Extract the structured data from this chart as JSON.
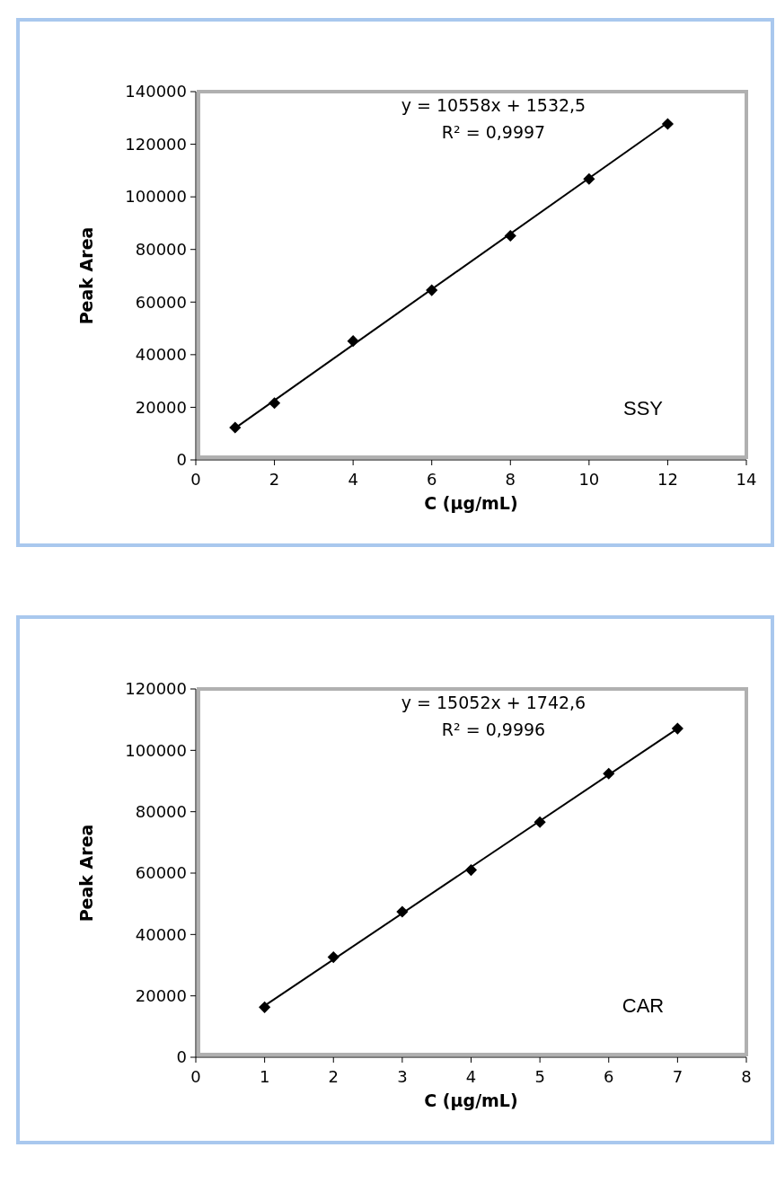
{
  "chart_data": [
    {
      "type": "scatter",
      "xlabel": "C (µg/mL)",
      "ylabel": "Peak Area",
      "xlim": [
        0,
        14
      ],
      "xticks": [
        0,
        2,
        4,
        6,
        8,
        10,
        12,
        14
      ],
      "ylim": [
        0,
        140000
      ],
      "yticks": [
        0,
        20000,
        40000,
        60000,
        80000,
        100000,
        120000,
        140000
      ],
      "grid": false,
      "series": [
        {
          "color": "#000000",
          "marker": "diamond",
          "x": [
            1,
            2,
            4,
            6,
            8,
            10,
            12
          ],
          "values": [
            12300,
            21600,
            45200,
            64500,
            85200,
            106800,
            127700
          ]
        },
        {
          "type": "line",
          "color": "#000000",
          "x": [
            1,
            12
          ],
          "values": [
            12100,
            128200
          ]
        }
      ],
      "annotations": [
        "y = 10558x + 1532,5",
        "R² = 0,9997",
        "SSY"
      ]
    },
    {
      "type": "scatter",
      "xlabel": "C (µg/mL)",
      "ylabel": "Peak Area",
      "xlim": [
        0,
        8
      ],
      "xticks": [
        0,
        1,
        2,
        3,
        4,
        5,
        6,
        7,
        8
      ],
      "ylim": [
        0,
        120000
      ],
      "yticks": [
        0,
        20000,
        40000,
        60000,
        80000,
        100000,
        120000
      ],
      "grid": false,
      "series": [
        {
          "color": "#000000",
          "marker": "diamond",
          "x": [
            1,
            2,
            3,
            4,
            5,
            6,
            7
          ],
          "values": [
            16300,
            32600,
            47400,
            61000,
            76600,
            92400,
            107100
          ]
        },
        {
          "type": "line",
          "color": "#000000",
          "x": [
            1,
            7
          ],
          "values": [
            16800,
            107100
          ]
        }
      ],
      "annotations": [
        "y = 15052x + 1742,6",
        "R² = 0,9996",
        "CAR"
      ]
    }
  ]
}
